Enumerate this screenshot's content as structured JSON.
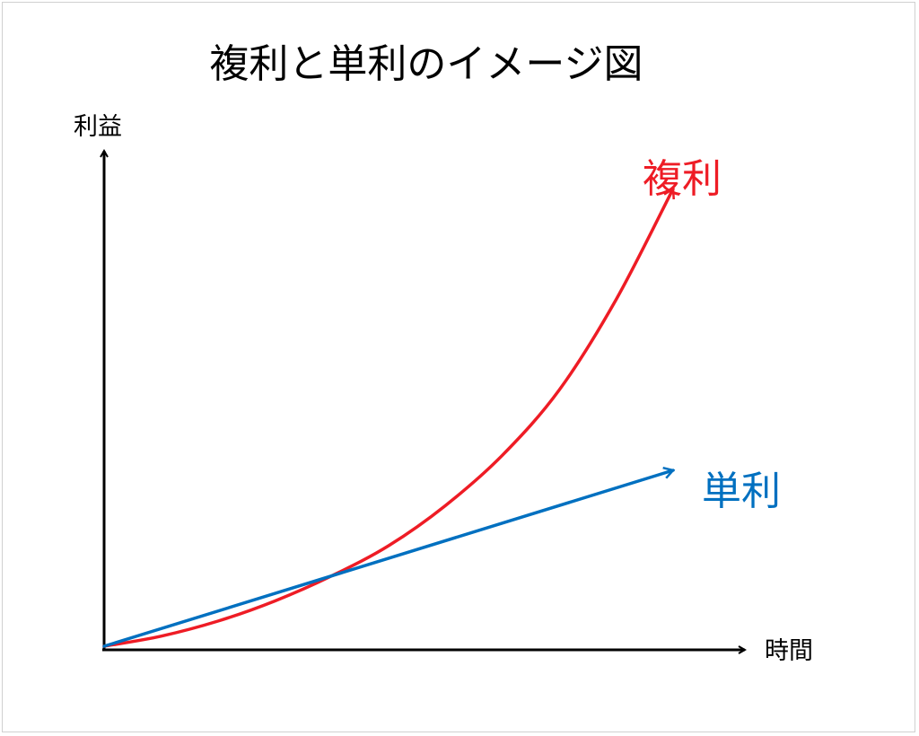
{
  "chart_data": {
    "type": "line",
    "title": "複利と単利のイメージ図",
    "xlabel": "時間",
    "ylabel": "利益",
    "grid": false,
    "legend": "inline",
    "xlim": [
      0,
      10
    ],
    "ylim": [
      0,
      10
    ],
    "series": [
      {
        "name": "複利",
        "color": "#ee1c25",
        "x": [
          0,
          1,
          2,
          3,
          4,
          5,
          6,
          7,
          8,
          9,
          10
        ],
        "y": [
          0,
          0.2,
          0.5,
          0.9,
          1.4,
          2.0,
          2.8,
          3.8,
          5.1,
          6.9,
          9.1
        ]
      },
      {
        "name": "単利",
        "color": "#0070c0",
        "x": [
          0,
          10
        ],
        "y": [
          0,
          3.5
        ]
      }
    ]
  }
}
